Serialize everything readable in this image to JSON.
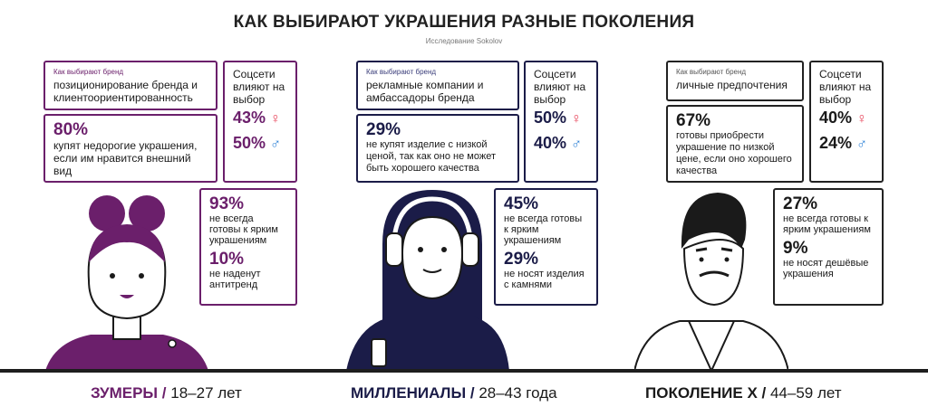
{
  "title": "КАК ВЫБИРАЮТ УКРАШЕНИЯ РАЗНЫЕ ПОКОЛЕНИЯ",
  "subtitle": "Исследование Sokolov",
  "colors": {
    "zoomers": "#6b1f6b",
    "millennials": "#1b1c48",
    "genx": "#1a1a1a",
    "female": "#e8455b",
    "male": "#2a7fd6"
  },
  "icons": {
    "female": "female-sign-icon",
    "male": "male-sign-icon"
  },
  "generations": [
    {
      "name": "ЗУМЕРЫ /",
      "ages": "18–27 лет",
      "brand_label": "Как выбирают бренд",
      "brand_text": "позиционирование бренда и клиентоориентированность",
      "social_label": "Соцсети влияют на выбор",
      "social_female": "43%",
      "social_male": "50%",
      "main_pct": "80%",
      "main_text": "купят недорогие украшения, если им нравится внешний вид",
      "stat1_pct": "93%",
      "stat1_text": "не всегда готовы к ярким украшениям",
      "stat2_pct": "10%",
      "stat2_text": "не наденут антитренд"
    },
    {
      "name": "МИЛЛЕНИАЛЫ /",
      "ages": "28–43 года",
      "brand_label": "Как выбирают бренд",
      "brand_text": "рекламные компании и амбассадоры бренда",
      "social_label": "Соцсети влияют на выбор",
      "social_female": "50%",
      "social_male": "40%",
      "main_pct": "29%",
      "main_text": "не купят изделие с низкой ценой, так как оно не может быть хорошего качества",
      "stat1_pct": "45%",
      "stat1_text": "не всегда готовы к ярким украшениям",
      "stat2_pct": "29%",
      "stat2_text": "не носят изделия с камнями"
    },
    {
      "name": "ПОКОЛЕНИЕ Х /",
      "ages": "44–59 лет",
      "brand_label": "Как выбирают бренд",
      "brand_text": "личные предпочтения",
      "social_label": "Соцсети влияют на выбор",
      "social_female": "40%",
      "social_male": "24%",
      "main_pct": "67%",
      "main_text": "готовы приобрести украшение по низкой цене, если оно хорошего качества",
      "stat1_pct": "27%",
      "stat1_text": "не всегда готовы к ярким украшениям",
      "stat2_pct": "9%",
      "stat2_text": "не носят дешёвые украшения"
    }
  ]
}
